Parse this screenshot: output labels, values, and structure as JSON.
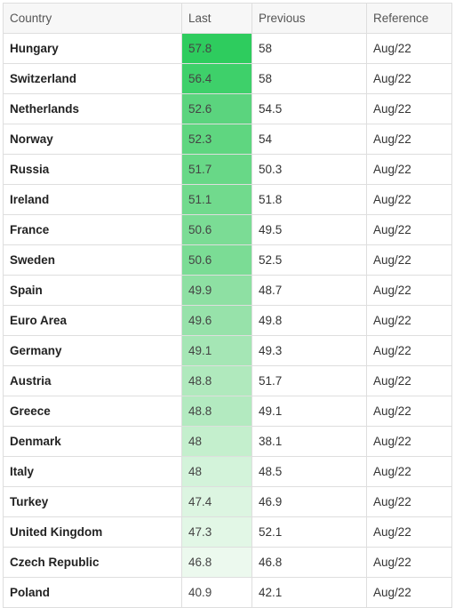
{
  "table": {
    "headers": [
      "Country",
      "Last",
      "Previous",
      "Reference"
    ],
    "rows": [
      {
        "country": "Hungary",
        "last": "57.8",
        "previous": "58",
        "reference": "Aug/22",
        "heat": "#2ecc5e"
      },
      {
        "country": "Switzerland",
        "last": "56.4",
        "previous": "58",
        "reference": "Aug/22",
        "heat": "#3ed06a"
      },
      {
        "country": "Netherlands",
        "last": "52.6",
        "previous": "54.5",
        "reference": "Aug/22",
        "heat": "#5bd47e"
      },
      {
        "country": "Norway",
        "last": "52.3",
        "previous": "54",
        "reference": "Aug/22",
        "heat": "#5fd680"
      },
      {
        "country": "Russia",
        "last": "51.7",
        "previous": "50.3",
        "reference": "Aug/22",
        "heat": "#68d887"
      },
      {
        "country": "Ireland",
        "last": "51.1",
        "previous": "51.8",
        "reference": "Aug/22",
        "heat": "#71da8d"
      },
      {
        "country": "France",
        "last": "50.6",
        "previous": "49.5",
        "reference": "Aug/22",
        "heat": "#7bdc95"
      },
      {
        "country": "Sweden",
        "last": "50.6",
        "previous": "52.5",
        "reference": "Aug/22",
        "heat": "#7bdc95"
      },
      {
        "country": "Spain",
        "last": "49.9",
        "previous": "48.7",
        "reference": "Aug/22",
        "heat": "#8ee0a3"
      },
      {
        "country": "Euro Area",
        "last": "49.6",
        "previous": "49.8",
        "reference": "Aug/22",
        "heat": "#97e2aa"
      },
      {
        "country": "Germany",
        "last": "49.1",
        "previous": "49.3",
        "reference": "Aug/22",
        "heat": "#a5e6b5"
      },
      {
        "country": "Austria",
        "last": "48.8",
        "previous": "51.7",
        "reference": "Aug/22",
        "heat": "#b0e9bd"
      },
      {
        "country": "Greece",
        "last": "48.8",
        "previous": "49.1",
        "reference": "Aug/22",
        "heat": "#b3eac0"
      },
      {
        "country": "Denmark",
        "last": "48",
        "previous": "38.1",
        "reference": "Aug/22",
        "heat": "#c4efcd"
      },
      {
        "country": "Italy",
        "last": "48",
        "previous": "48.5",
        "reference": "Aug/22",
        "heat": "#d3f3da"
      },
      {
        "country": "Turkey",
        "last": "47.4",
        "previous": "46.9",
        "reference": "Aug/22",
        "heat": "#dcf5e1"
      },
      {
        "country": "United Kingdom",
        "last": "47.3",
        "previous": "52.1",
        "reference": "Aug/22",
        "heat": "#e2f7e6"
      },
      {
        "country": "Czech Republic",
        "last": "46.8",
        "previous": "46.8",
        "reference": "Aug/22",
        "heat": "#ecf9ee"
      },
      {
        "country": "Poland",
        "last": "40.9",
        "previous": "42.1",
        "reference": "Aug/22",
        "heat": "#ffffff"
      }
    ]
  }
}
